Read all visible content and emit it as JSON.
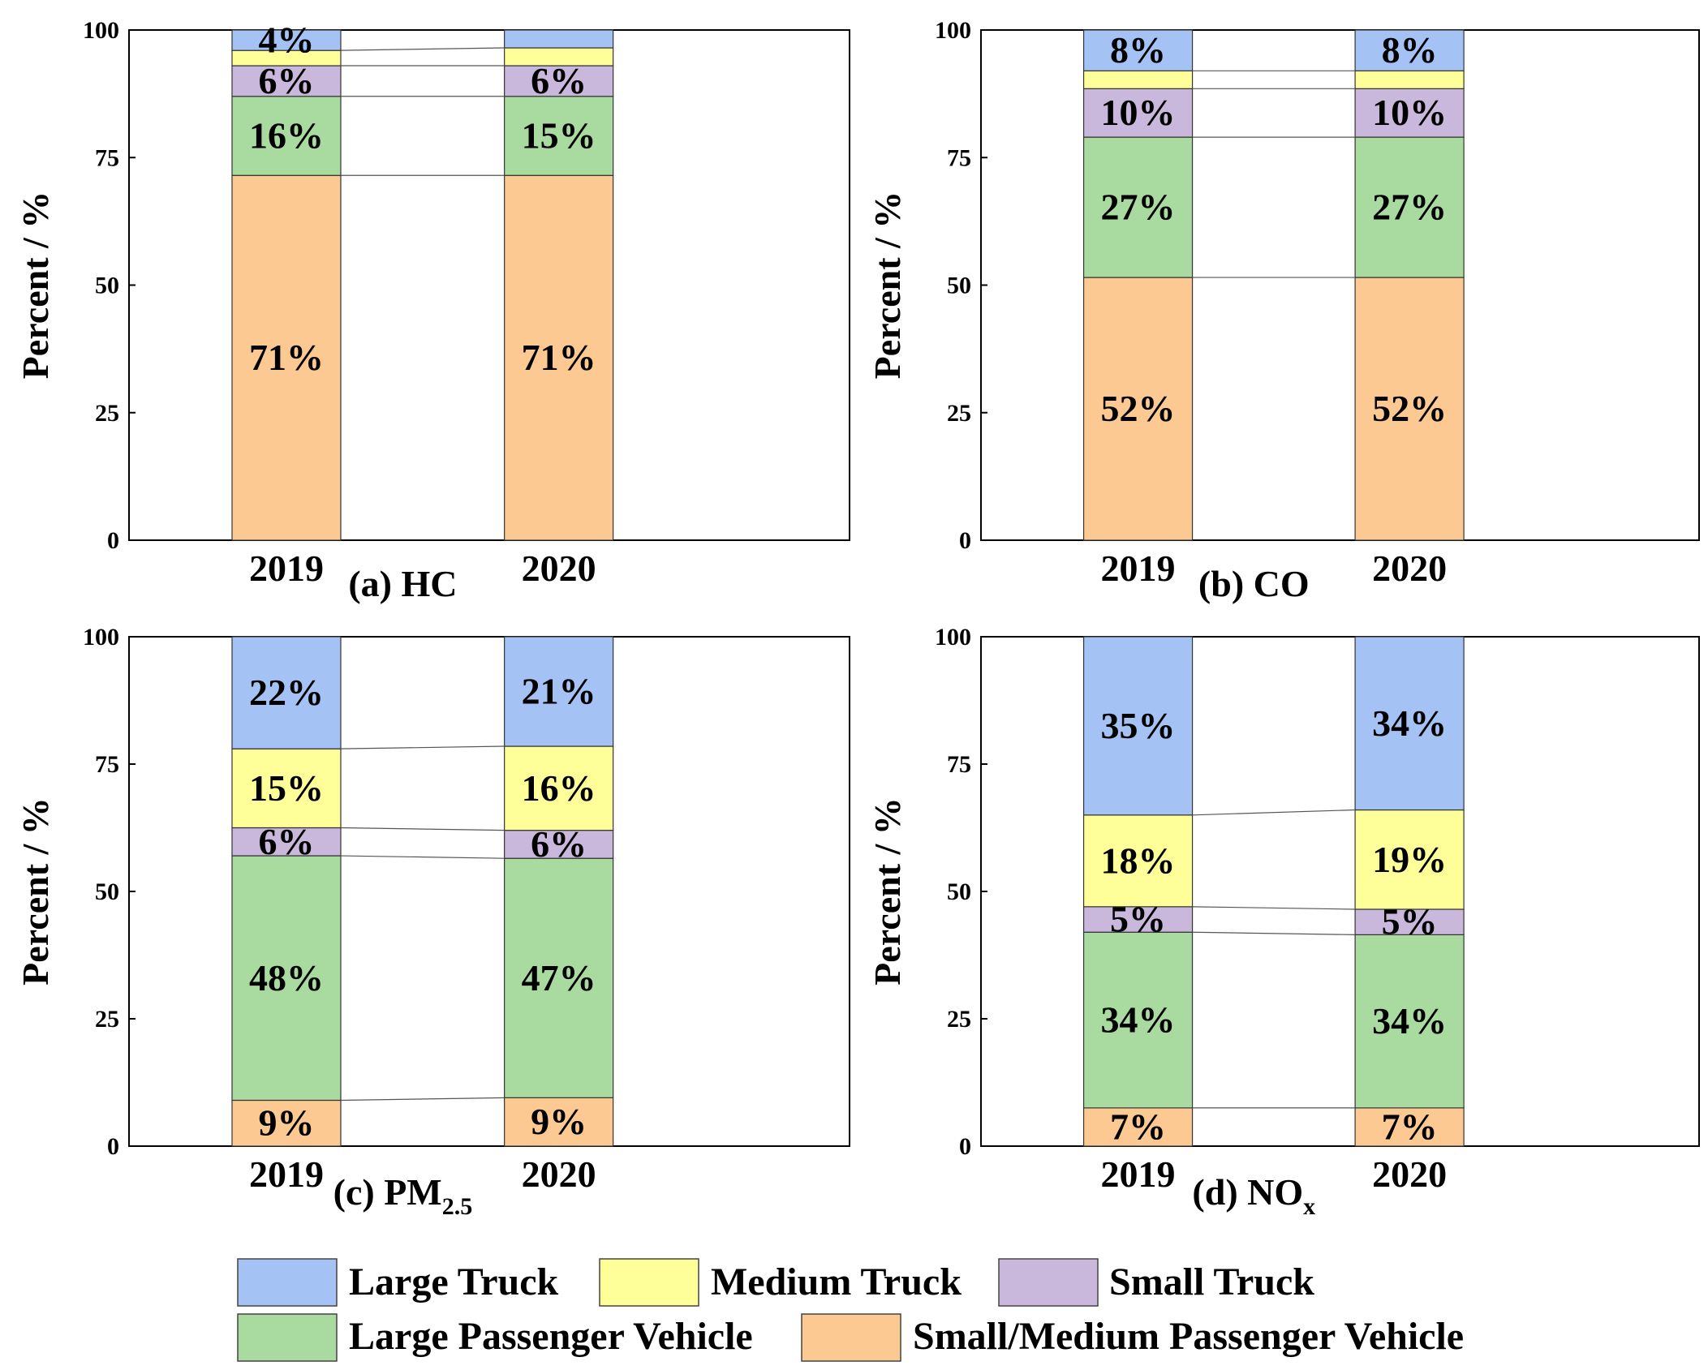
{
  "legend": [
    {
      "key": "large_truck",
      "label": "Large Truck",
      "color": "#a4c2f4"
    },
    {
      "key": "medium_truck",
      "label": "Medium Truck",
      "color": "#ffff99"
    },
    {
      "key": "small_truck",
      "label": "Small Truck",
      "color": "#c9b7dc"
    },
    {
      "key": "large_passenger",
      "label": "Large Passenger Vehicle",
      "color": "#a9dba0"
    },
    {
      "key": "small_medium_passenger",
      "label": "Small/Medium Passenger Vehicle",
      "color": "#fcc992"
    }
  ],
  "chart_data": [
    {
      "type": "bar",
      "stacked": true,
      "title": "(a) HC",
      "title_main": "(a) HC",
      "title_sub": "",
      "ylabel": "Percent / %",
      "ylim": [
        0,
        100
      ],
      "yticks": [
        "0",
        "25",
        "50",
        "75",
        "100"
      ],
      "categories": [
        "2019",
        "2020"
      ],
      "series": [
        {
          "name": "Small/Medium Passenger Vehicle",
          "values": [
            71.5,
            71.5
          ],
          "labels": [
            "71%",
            "71%"
          ]
        },
        {
          "name": "Large Passenger Vehicle",
          "values": [
            15.5,
            15.5
          ],
          "labels": [
            "16%",
            "15%"
          ]
        },
        {
          "name": "Small Truck",
          "values": [
            6,
            6
          ],
          "labels": [
            "6%",
            "6%"
          ]
        },
        {
          "name": "Medium Truck",
          "values": [
            3,
            3.5
          ],
          "labels": [
            "",
            ""
          ]
        },
        {
          "name": "Large Truck",
          "values": [
            4,
            3.5
          ],
          "labels": [
            "4%",
            ""
          ]
        }
      ]
    },
    {
      "type": "bar",
      "stacked": true,
      "title": "(b) CO",
      "title_main": "(b) CO",
      "title_sub": "",
      "ylabel": "Percent / %",
      "ylim": [
        0,
        100
      ],
      "yticks": [
        "0",
        "25",
        "50",
        "75",
        "100"
      ],
      "categories": [
        "2019",
        "2020"
      ],
      "series": [
        {
          "name": "Small/Medium Passenger Vehicle",
          "values": [
            51.5,
            51.5
          ],
          "labels": [
            "52%",
            "52%"
          ]
        },
        {
          "name": "Large Passenger Vehicle",
          "values": [
            27.5,
            27.5
          ],
          "labels": [
            "27%",
            "27%"
          ]
        },
        {
          "name": "Small Truck",
          "values": [
            9.5,
            9.5
          ],
          "labels": [
            "10%",
            "10%"
          ]
        },
        {
          "name": "Medium Truck",
          "values": [
            3.5,
            3.5
          ],
          "labels": [
            "",
            ""
          ]
        },
        {
          "name": "Large Truck",
          "values": [
            8,
            8
          ],
          "labels": [
            "8%",
            "8%"
          ]
        }
      ]
    },
    {
      "type": "bar",
      "stacked": true,
      "title": "(c) PM2.5",
      "title_main": "(c) PM",
      "title_sub": "2.5",
      "ylabel": "Percent / %",
      "ylim": [
        0,
        100
      ],
      "yticks": [
        "0",
        "25",
        "50",
        "75",
        "100"
      ],
      "categories": [
        "2019",
        "2020"
      ],
      "series": [
        {
          "name": "Small/Medium Passenger Vehicle",
          "values": [
            9,
            9.5
          ],
          "labels": [
            "9%",
            "9%"
          ]
        },
        {
          "name": "Large Passenger Vehicle",
          "values": [
            48,
            47
          ],
          "labels": [
            "48%",
            "47%"
          ]
        },
        {
          "name": "Small Truck",
          "values": [
            5.5,
            5.5
          ],
          "labels": [
            "6%",
            "6%"
          ]
        },
        {
          "name": "Medium Truck",
          "values": [
            15.5,
            16.5
          ],
          "labels": [
            "15%",
            "16%"
          ]
        },
        {
          "name": "Large Truck",
          "values": [
            22,
            21.5
          ],
          "labels": [
            "22%",
            "21%"
          ]
        }
      ]
    },
    {
      "type": "bar",
      "stacked": true,
      "title": "(d) NOx",
      "title_main": "(d) NO",
      "title_sub": "x",
      "ylabel": "Percent  / %",
      "ylim": [
        0,
        100
      ],
      "yticks": [
        "0",
        "25",
        "50",
        "75",
        "100"
      ],
      "categories": [
        "2019",
        "2020"
      ],
      "series": [
        {
          "name": "Small/Medium Passenger Vehicle",
          "values": [
            7.5,
            7.5
          ],
          "labels": [
            "7%",
            "7%"
          ]
        },
        {
          "name": "Large Passenger Vehicle",
          "values": [
            34.5,
            34
          ],
          "labels": [
            "34%",
            "34%"
          ]
        },
        {
          "name": "Small Truck",
          "values": [
            5,
            5
          ],
          "labels": [
            "5%",
            "5%"
          ]
        },
        {
          "name": "Medium Truck",
          "values": [
            18,
            19.5
          ],
          "labels": [
            "18%",
            "19%"
          ]
        },
        {
          "name": "Large Truck",
          "values": [
            35,
            34
          ],
          "labels": [
            "35%",
            "34%"
          ]
        }
      ]
    }
  ]
}
